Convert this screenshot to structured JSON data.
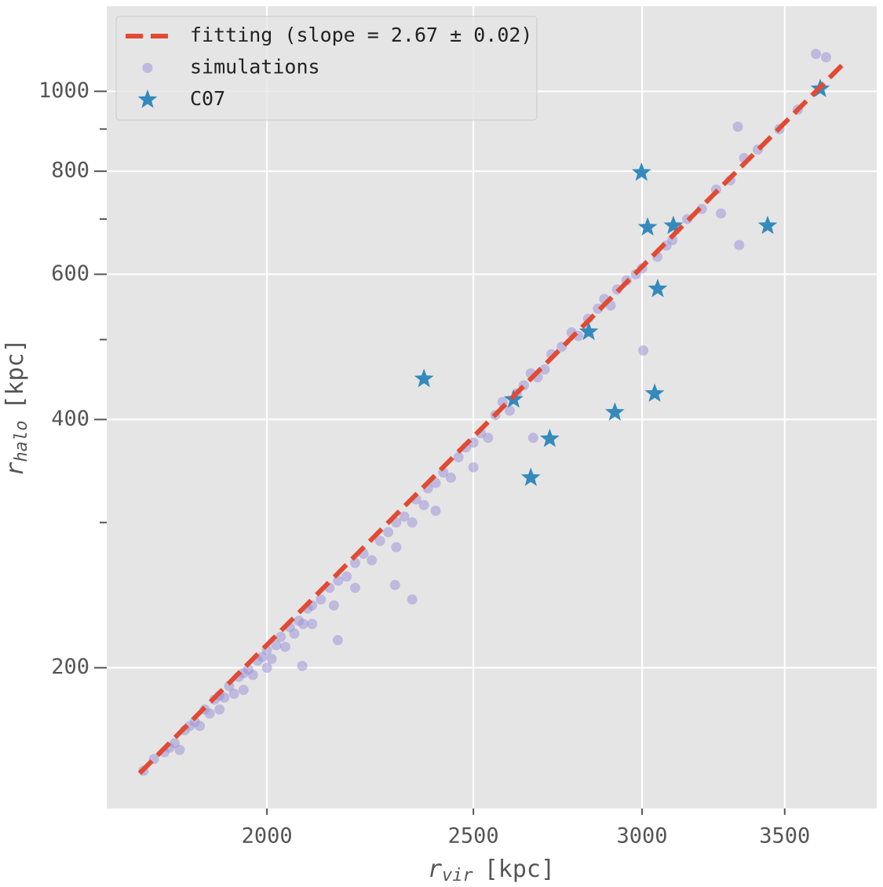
{
  "chart_data": {
    "type": "scatter",
    "xlabel": {
      "symbol": "r",
      "subscript": "vir",
      "unit": "[kpc]"
    },
    "ylabel": {
      "symbol": "r",
      "subscript": "halo",
      "unit": "[kpc]"
    },
    "xscale": "log",
    "yscale": "log",
    "xlim": [
      1682,
      3866
    ],
    "ylim": [
      135,
      1268
    ],
    "xticks": [
      2000,
      2500,
      3000,
      3500
    ],
    "yticks": [
      200,
      400,
      600,
      800,
      1000
    ],
    "yminor_ticks": [
      300,
      500,
      700,
      900
    ],
    "grid": true,
    "legend": "upper left",
    "series": [
      {
        "name": "fitting (slope = 2.67 ± 0.02)",
        "type": "line",
        "dashed": true,
        "color": "#e24a33",
        "x": [
          1743,
          3733
        ],
        "values": [
          149,
          1083
        ]
      },
      {
        "name": "simulations",
        "type": "scatter",
        "marker": "circle",
        "color": "#988ed5",
        "x": [
          1750,
          1770,
          1790,
          1800,
          1810,
          1820,
          1830,
          1840,
          1850,
          1860,
          1870,
          1880,
          1890,
          1900,
          1900,
          1910,
          1920,
          1930,
          1940,
          1950,
          1950,
          1960,
          1970,
          1980,
          1990,
          2000,
          2000,
          2010,
          2020,
          2030,
          2040,
          2050,
          2060,
          2070,
          2080,
          2090,
          2100,
          2100,
          2120,
          2140,
          2150,
          2160,
          2180,
          2200,
          2200,
          2220,
          2240,
          2260,
          2280,
          2300,
          2300,
          2320,
          2340,
          2350,
          2370,
          2380,
          2400,
          2400,
          2420,
          2440,
          2460,
          2480,
          2500,
          2500,
          2520,
          2540,
          2560,
          2580,
          2600,
          2620,
          2640,
          2660,
          2680,
          2700,
          2720,
          2750,
          2780,
          2800,
          2830,
          2860,
          2880,
          2900,
          2920,
          2950,
          2980,
          3000,
          3050,
          3080,
          3100,
          3150,
          3200,
          3250,
          3300,
          3350,
          3400,
          3480,
          3550,
          3620,
          3660,
          2340,
          2297,
          3004,
          3332,
          2078,
          2159,
          3267,
          2667,
          3327
        ],
        "values": [
          150,
          155,
          158,
          160,
          162,
          159,
          168,
          170,
          172,
          170,
          178,
          176,
          183,
          185,
          178,
          184,
          190,
          186,
          195,
          197,
          188,
          199,
          196,
          204,
          206,
          210,
          200,
          205,
          213,
          218,
          212,
          224,
          220,
          228,
          226,
          236,
          238,
          226,
          242,
          250,
          238,
          255,
          258,
          268,
          250,
          275,
          270,
          285,
          292,
          300,
          280,
          305,
          300,
          320,
          315,
          330,
          335,
          310,
          345,
          340,
          360,
          370,
          375,
          350,
          385,
          380,
          405,
          420,
          410,
          430,
          440,
          455,
          450,
          460,
          480,
          490,
          510,
          505,
          530,
          545,
          560,
          550,
          575,
          590,
          600,
          610,
          630,
          650,
          660,
          700,
          720,
          760,
          780,
          830,
          850,
          900,
          950,
          1110,
          1100,
          242,
          252,
          485,
          651,
          201,
          216,
          711,
          380,
          906
        ]
      },
      {
        "name": "C07",
        "type": "scatter",
        "marker": "star",
        "color": "#348abd",
        "x": [
          3637,
          2998,
          3018,
          3103,
          3436,
          3051,
          2832,
          2370,
          2611,
          3041,
          2913,
          2715,
          2660
        ],
        "values": [
          1007,
          797,
          684,
          687,
          687,
          576,
          511,
          448,
          423,
          430,
          408,
          379,
          340
        ]
      }
    ]
  }
}
